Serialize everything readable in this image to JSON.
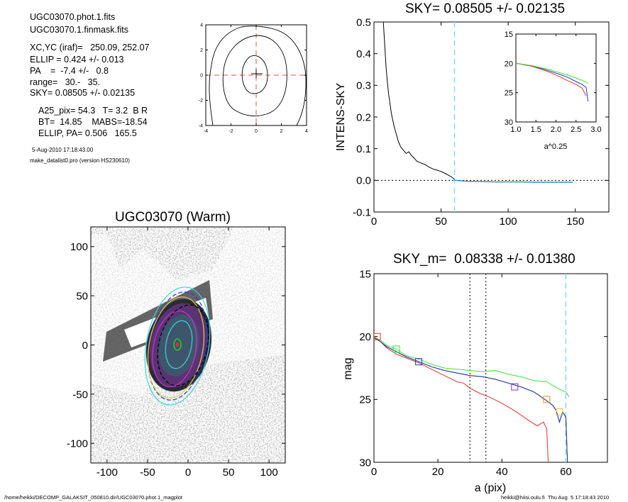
{
  "info_lines": [
    "UGC03070.phot.1.fits",
    "UGC03070.1.finmask.fits",
    "XC,YC (iraf)=   250.09, 252.07",
    "ELLIP = 0.424 +/- 0.013",
    "PA    =  -7.4 +/-   0.8",
    "range=   30.-   35.",
    "SKY= 0.08505 +/- 0.02135",
    "A25_pix= 54.3   T= 3.2  B R",
    "BT=  14.85    MABS=-18.54",
    "ELLIP, PA= 0.506   165.5"
  ],
  "timestamp": "5-Aug-2010 17:18:43.00",
  "program": "make_datalist0.pro (version HS230610)",
  "footer_left": "/home/heikki/DECOMP_GALAKSIT_050810.dir/UGC03070.phot.1_magplot",
  "footer_right": "heikki@hiisi.oulu.fi  Thu Aug  5 17:18:43 2010",
  "colors": {
    "sky_line": "#7fe0f0",
    "profile_blue": "#1a3fd0",
    "red": "#e8302a",
    "green": "#3ee03e"
  },
  "chart_data": [
    {
      "id": "contour_map",
      "type": "contour",
      "xlim": [
        -4,
        4
      ],
      "ylim": [
        -4,
        4
      ],
      "xticks": [
        "-4",
        "-2",
        "0",
        "2",
        "4"
      ],
      "yticks": [
        "-4",
        "-2",
        "0",
        "2",
        "4"
      ],
      "crosshair": {
        "x": 0,
        "y": 0
      }
    },
    {
      "id": "galaxy_image",
      "type": "image",
      "title": "UGC03070 (Warm)",
      "xlim": [
        -120,
        120
      ],
      "ylim": [
        -120,
        120
      ],
      "xticks": [
        "-100",
        "-50",
        "0",
        "50",
        "100"
      ],
      "yticks": [
        "-100",
        "-50",
        "0",
        "50",
        "100"
      ]
    },
    {
      "id": "intens_sky",
      "type": "line",
      "title": "SKY= 0.08505 +/- 0.02135",
      "ylabel": "INTENS-SKY",
      "xlim": [
        0,
        175
      ],
      "ylim": [
        -0.1,
        0.5
      ],
      "xticks": [
        "0",
        "50",
        "100",
        "150"
      ],
      "yticks": [
        "-0.1",
        "0.0",
        "0.1",
        "0.2",
        "0.3",
        "0.4",
        "0.5"
      ],
      "sky_radius": 60,
      "series": [
        {
          "x": [
            7,
            8,
            9,
            10,
            11,
            12,
            13,
            14,
            15,
            16,
            17,
            18,
            19,
            20,
            22,
            24,
            26,
            28,
            30,
            32,
            35,
            38,
            41,
            44,
            47,
            50,
            53,
            56,
            58,
            60
          ],
          "y": [
            0.5,
            0.43,
            0.36,
            0.31,
            0.27,
            0.24,
            0.21,
            0.19,
            0.17,
            0.155,
            0.14,
            0.125,
            0.115,
            0.105,
            0.095,
            0.085,
            0.09,
            0.078,
            0.07,
            0.06,
            0.055,
            0.05,
            0.042,
            0.036,
            0.032,
            0.028,
            0.022,
            0.015,
            0.01,
            0.003
          ]
        },
        {
          "x": [
            60,
            70,
            80,
            90,
            100,
            110,
            120,
            130,
            140,
            148
          ],
          "y": [
            0.0,
            -0.003,
            -0.004,
            -0.005,
            -0.005,
            -0.005,
            -0.006,
            -0.006,
            -0.006,
            -0.006
          ]
        }
      ]
    },
    {
      "id": "inset_profile",
      "type": "line",
      "xlabel": "a^0.25",
      "xlim": [
        1.0,
        3.0
      ],
      "ylim": [
        30,
        15
      ],
      "xticks": [
        "1.0",
        "1.5",
        "2.0",
        "2.5",
        "3.0"
      ],
      "yticks": [
        "15",
        "20",
        "25",
        "30"
      ],
      "series": [
        {
          "x": [
            1.0,
            1.4,
            1.8,
            2.1,
            2.3,
            2.5,
            2.65,
            2.75,
            2.8
          ],
          "y": [
            20.0,
            20.4,
            21.2,
            21.9,
            22.4,
            23.1,
            23.6,
            24.1,
            26.5
          ]
        },
        {
          "x": [
            1.0,
            1.4,
            1.8,
            2.1,
            2.3,
            2.5,
            2.65,
            2.75
          ],
          "y": [
            20.0,
            20.5,
            21.4,
            22.3,
            23.0,
            23.6,
            24.2,
            25.5
          ]
        },
        {
          "x": [
            1.0,
            1.4,
            1.8,
            2.1,
            2.3,
            2.5,
            2.65,
            2.8
          ],
          "y": [
            20.0,
            20.4,
            21.0,
            21.6,
            22.0,
            22.5,
            22.9,
            23.4
          ]
        }
      ]
    },
    {
      "id": "mag_profile",
      "type": "line",
      "title": "SKY_m=  0.08338 +/- 0.01380",
      "xlabel": "a (pix)",
      "ylabel": "mag",
      "xlim": [
        0,
        73
      ],
      "ylim": [
        30,
        15
      ],
      "xticks": [
        "0",
        "20",
        "40",
        "60"
      ],
      "yticks": [
        "15",
        "20",
        "25",
        "30"
      ],
      "vlines_dotted": [
        30,
        35
      ],
      "sky_radius": 60,
      "series": [
        {
          "name": "blue",
          "x": [
            0,
            2,
            4,
            7,
            10,
            14,
            18,
            22,
            26,
            30,
            34,
            38,
            42,
            46,
            50,
            54,
            56,
            57,
            58,
            59,
            60,
            60.5
          ],
          "y": [
            20.1,
            20.4,
            20.8,
            21.2,
            21.6,
            22.0,
            22.4,
            22.7,
            22.9,
            23.1,
            23.2,
            23.4,
            23.7,
            24.0,
            24.4,
            25.1,
            25.5,
            25.9,
            26.8,
            26.0,
            26.4,
            30
          ]
        },
        {
          "name": "red",
          "x": [
            0,
            2,
            4,
            7,
            10,
            14,
            18,
            22,
            26,
            28,
            30,
            33,
            36,
            40,
            44,
            48,
            51,
            53,
            54,
            54.5
          ],
          "y": [
            20.0,
            20.4,
            20.9,
            21.4,
            21.7,
            22.1,
            22.6,
            23.1,
            23.6,
            23.7,
            24.1,
            24.5,
            24.8,
            25.3,
            25.9,
            26.6,
            27.1,
            26.8,
            27.3,
            30
          ]
        },
        {
          "name": "green",
          "x": [
            0,
            2,
            4,
            7,
            10,
            14,
            18,
            22,
            26,
            30,
            34,
            38,
            42,
            46,
            50,
            54,
            56,
            58,
            60,
            61
          ],
          "y": [
            20.0,
            20.3,
            20.7,
            21.0,
            21.5,
            21.8,
            22.2,
            22.5,
            22.6,
            22.7,
            22.8,
            22.7,
            23.0,
            23.2,
            23.5,
            23.6,
            23.9,
            24.2,
            24.4,
            24.8
          ]
        }
      ],
      "markers": [
        {
          "x": 1,
          "y": 20.0,
          "color": "#e8302a"
        },
        {
          "x": 7,
          "y": 21.0,
          "color": "#3ee03e"
        },
        {
          "x": 14,
          "y": 22.0,
          "color": "#1a3fd0"
        },
        {
          "x": 44,
          "y": 24.0,
          "color": "#8a2be2"
        },
        {
          "x": 54,
          "y": 25.0,
          "color": "#e89020"
        },
        {
          "x": 58,
          "y": 26.0,
          "color": "#f0c020"
        }
      ]
    }
  ]
}
